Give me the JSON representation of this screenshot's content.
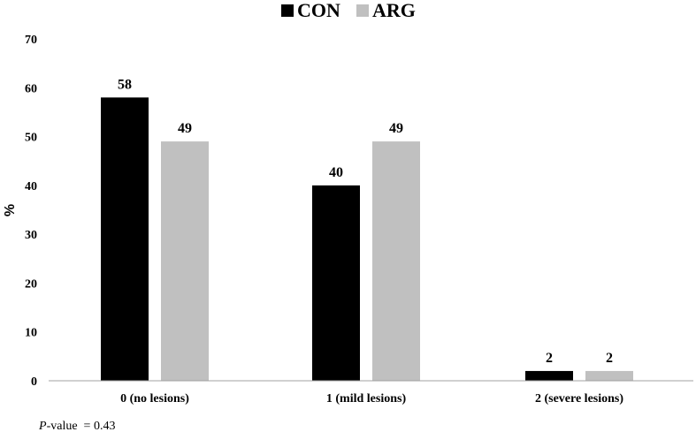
{
  "chart_data": {
    "type": "bar",
    "categories": [
      "0 (no lesions)",
      "1 (mild lesions)",
      "2 (severe lesions)"
    ],
    "series": [
      {
        "name": "CON",
        "values": [
          58,
          40,
          2
        ],
        "color": "#000000"
      },
      {
        "name": "ARG",
        "values": [
          49,
          49,
          2
        ],
        "color": "#c0c0c0"
      }
    ],
    "title": "",
    "xlabel": "",
    "ylabel": "%",
    "ylim": [
      0,
      70
    ],
    "yticks": [
      0,
      10,
      20,
      30,
      40,
      50,
      60,
      70
    ],
    "grid": false,
    "legend": "top-center",
    "data_labels": true,
    "note": {
      "p_label": "P",
      "rest": "-value  = 0.43"
    }
  }
}
